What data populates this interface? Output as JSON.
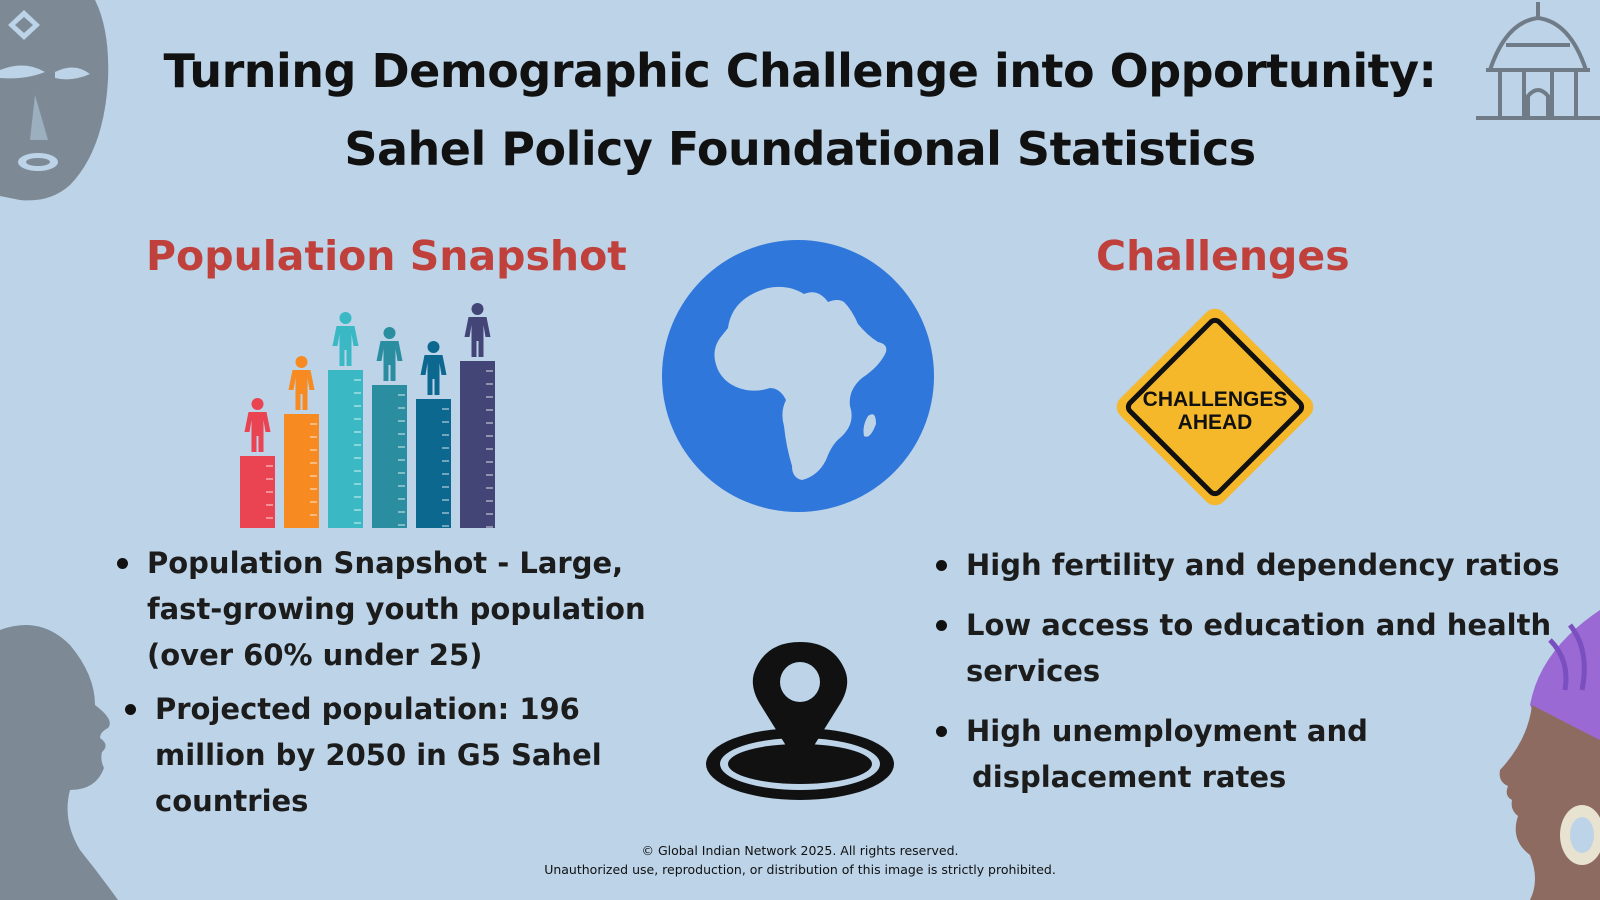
{
  "title": {
    "line1": "Turning Demographic Challenge into Opportunity:",
    "line2": "Sahel Policy Foundational Statistics"
  },
  "population": {
    "heading": "Population Snapshot",
    "chart_icon": "population-growth-bars-icon",
    "bar_colors": [
      "#ea4351",
      "#f78a21",
      "#3ab8c4",
      "#2a8ea0",
      "#0d6890",
      "#434577"
    ],
    "bullets": [
      "Population Snapshot - Large, fast-growing youth population (over 60% under 25)",
      "Projected population: 196 million by 2050 in G5 Sahel countries"
    ]
  },
  "globe": {
    "icon": "africa-globe-icon",
    "color": "#2f77db"
  },
  "location": {
    "icon": "location-pin-icon"
  },
  "challenges": {
    "heading": "Challenges",
    "sign": {
      "line1": "CHALLENGES",
      "line2": "AHEAD",
      "color": "#f5b82a"
    },
    "bullets": [
      "High fertility and dependency ratios",
      "Low access to education and health services",
      "High unemployment and",
      "displacement rates"
    ]
  },
  "footer": {
    "line1": "© Global Indian Network 2025. All rights reserved.",
    "line2": "Unauthorized use, reproduction, or distribution of this image is strictly prohibited."
  },
  "colors": {
    "background": "#bcd3e8",
    "heading_red": "#c0403c",
    "decor_gray": "#7d8a96"
  }
}
